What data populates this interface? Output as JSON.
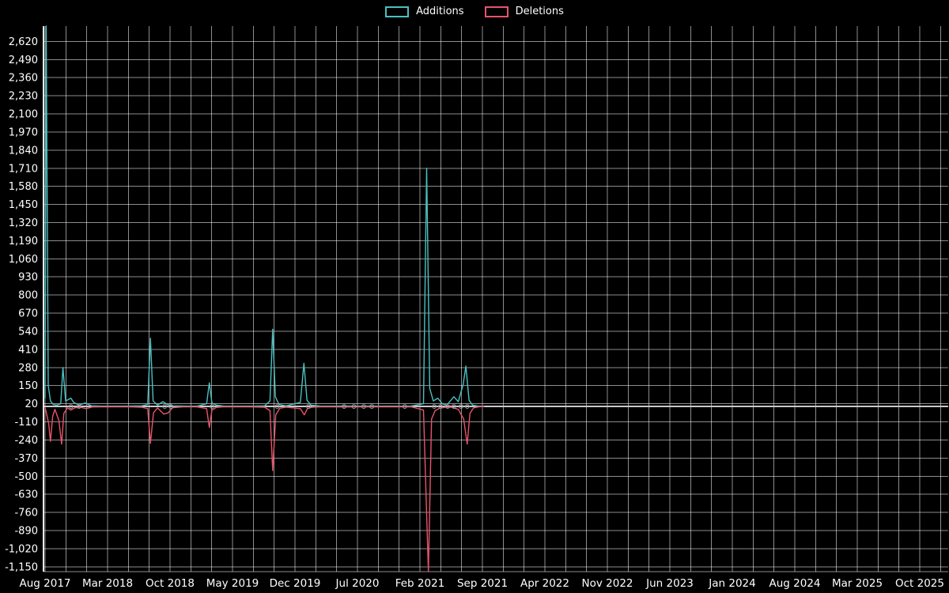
{
  "legend": {
    "additions": "Additions",
    "deletions": "Deletions"
  },
  "colors": {
    "additions": "#4bc0c0",
    "deletions": "#e8546b",
    "grid": "rgba(255,255,255,0.55)",
    "axis": "#e8e8e8",
    "zero_line": "#c9c9c9",
    "marker": "#9c9c9c",
    "text": "#ffffff",
    "background": "#000000"
  },
  "chart_data": {
    "type": "line",
    "title": "",
    "xlabel": "",
    "ylabel": "",
    "grid": true,
    "legend_position": "top-center",
    "x_unit": "months since Aug 2017",
    "ylim": [
      -1185,
      2730
    ],
    "x_ticks": [
      {
        "month": 0,
        "label": "Aug 2017"
      },
      {
        "month": 7,
        "label": "Mar 2018"
      },
      {
        "month": 14,
        "label": "Oct 2018"
      },
      {
        "month": 21,
        "label": "May 2019"
      },
      {
        "month": 28,
        "label": "Dec 2019"
      },
      {
        "month": 35,
        "label": "Jul 2020"
      },
      {
        "month": 42,
        "label": "Feb 2021"
      },
      {
        "month": 49,
        "label": "Sep 2021"
      },
      {
        "month": 56,
        "label": "Apr 2022"
      },
      {
        "month": 63,
        "label": "Nov 2022"
      },
      {
        "month": 70,
        "label": "Jun 2023"
      },
      {
        "month": 77,
        "label": "Jan 2024"
      },
      {
        "month": 84,
        "label": "Aug 2024"
      },
      {
        "month": 91,
        "label": "Mar 2025"
      },
      {
        "month": 98,
        "label": "Oct 2025"
      }
    ],
    "y_ticks": [
      {
        "value": 2620,
        "label": "2,620"
      },
      {
        "value": 2490,
        "label": "2,490"
      },
      {
        "value": 2360,
        "label": "2,360"
      },
      {
        "value": 2230,
        "label": "2,230"
      },
      {
        "value": 2100,
        "label": "2,100"
      },
      {
        "value": 1970,
        "label": "1,970"
      },
      {
        "value": 1840,
        "label": "1,840"
      },
      {
        "value": 1710,
        "label": "1,710"
      },
      {
        "value": 1580,
        "label": "1,580"
      },
      {
        "value": 1450,
        "label": "1,450"
      },
      {
        "value": 1320,
        "label": "1,320"
      },
      {
        "value": 1190,
        "label": "1,190"
      },
      {
        "value": 1060,
        "label": "1,060"
      },
      {
        "value": 930,
        "label": "930"
      },
      {
        "value": 800,
        "label": "800"
      },
      {
        "value": 670,
        "label": "670"
      },
      {
        "value": 540,
        "label": "540"
      },
      {
        "value": 410,
        "label": "410"
      },
      {
        "value": 280,
        "label": "280"
      },
      {
        "value": 150,
        "label": "150"
      },
      {
        "value": 20,
        "label": "20"
      },
      {
        "value": -110,
        "label": "-110"
      },
      {
        "value": -240,
        "label": "-240"
      },
      {
        "value": -370,
        "label": "-370"
      },
      {
        "value": -500,
        "label": "-500"
      },
      {
        "value": -630,
        "label": "-630"
      },
      {
        "value": -760,
        "label": "-760"
      },
      {
        "value": -890,
        "label": "-890"
      },
      {
        "value": -1020,
        "label": "-1,020"
      },
      {
        "value": -1150,
        "label": "-1,150"
      }
    ],
    "series": [
      {
        "name": "Additions",
        "color": "#4bc0c0",
        "points": [
          [
            0.0,
            60
          ],
          [
            0.12,
            2850
          ],
          [
            0.35,
            150
          ],
          [
            0.6,
            40
          ],
          [
            0.9,
            15
          ],
          [
            1.3,
            10
          ],
          [
            1.75,
            20
          ],
          [
            2.0,
            280
          ],
          [
            2.3,
            40
          ],
          [
            2.9,
            60
          ],
          [
            3.2,
            30
          ],
          [
            3.8,
            10
          ],
          [
            4.5,
            25
          ],
          [
            5.2,
            5
          ],
          [
            6.5,
            2
          ],
          [
            8.0,
            2
          ],
          [
            9.5,
            3
          ],
          [
            10.8,
            5
          ],
          [
            11.5,
            15
          ],
          [
            11.8,
            490
          ],
          [
            12.1,
            40
          ],
          [
            12.6,
            10
          ],
          [
            13.2,
            35
          ],
          [
            13.7,
            15
          ],
          [
            14.3,
            5
          ],
          [
            15.5,
            3
          ],
          [
            17.0,
            2
          ],
          [
            18.1,
            20
          ],
          [
            18.4,
            170
          ],
          [
            18.7,
            25
          ],
          [
            19.2,
            10
          ],
          [
            20.0,
            3
          ],
          [
            21.5,
            2
          ],
          [
            23.0,
            2
          ],
          [
            24.6,
            5
          ],
          [
            25.2,
            40
          ],
          [
            25.5,
            555
          ],
          [
            25.8,
            70
          ],
          [
            26.2,
            15
          ],
          [
            27.0,
            5
          ],
          [
            28.6,
            30
          ],
          [
            29.0,
            310
          ],
          [
            29.35,
            45
          ],
          [
            29.8,
            10
          ],
          [
            30.8,
            3
          ],
          [
            32.0,
            2
          ],
          [
            33.5,
            4
          ],
          [
            35.0,
            2
          ],
          [
            36.5,
            3
          ],
          [
            38.0,
            2
          ],
          [
            39.5,
            2
          ],
          [
            41.0,
            3
          ],
          [
            42.4,
            20
          ],
          [
            42.75,
            1710
          ],
          [
            43.1,
            130
          ],
          [
            43.5,
            40
          ],
          [
            44.0,
            60
          ],
          [
            44.5,
            20
          ],
          [
            45.0,
            10
          ],
          [
            45.8,
            70
          ],
          [
            46.3,
            35
          ],
          [
            46.85,
            160
          ],
          [
            47.15,
            290
          ],
          [
            47.5,
            45
          ],
          [
            47.9,
            10
          ],
          [
            48.6,
            2
          ],
          [
            49.2,
            0
          ]
        ]
      },
      {
        "name": "Deletions",
        "color": "#e8546b",
        "points": [
          [
            0.0,
            -5
          ],
          [
            0.12,
            -40
          ],
          [
            0.4,
            -120
          ],
          [
            0.6,
            -250
          ],
          [
            0.85,
            -70
          ],
          [
            1.1,
            -20
          ],
          [
            1.55,
            -100
          ],
          [
            1.85,
            -270
          ],
          [
            2.1,
            -50
          ],
          [
            2.5,
            -10
          ],
          [
            2.9,
            -25
          ],
          [
            3.3,
            -10
          ],
          [
            3.9,
            -5
          ],
          [
            4.6,
            -15
          ],
          [
            5.3,
            -3
          ],
          [
            6.5,
            -2
          ],
          [
            8.0,
            -2
          ],
          [
            9.5,
            -2
          ],
          [
            10.8,
            -5
          ],
          [
            11.5,
            -15
          ],
          [
            11.8,
            -265
          ],
          [
            12.15,
            -45
          ],
          [
            12.6,
            -10
          ],
          [
            13.3,
            -55
          ],
          [
            13.8,
            -45
          ],
          [
            14.3,
            -8
          ],
          [
            15.5,
            -2
          ],
          [
            17.0,
            -2
          ],
          [
            18.1,
            -15
          ],
          [
            18.4,
            -150
          ],
          [
            18.7,
            -25
          ],
          [
            19.2,
            -6
          ],
          [
            20.0,
            -2
          ],
          [
            21.5,
            -2
          ],
          [
            23.0,
            -2
          ],
          [
            24.6,
            -5
          ],
          [
            25.2,
            -30
          ],
          [
            25.5,
            -460
          ],
          [
            25.85,
            -60
          ],
          [
            26.3,
            -12
          ],
          [
            27.0,
            -4
          ],
          [
            28.6,
            -15
          ],
          [
            29.05,
            -60
          ],
          [
            29.4,
            -15
          ],
          [
            29.9,
            -5
          ],
          [
            30.8,
            -2
          ],
          [
            32.0,
            -2
          ],
          [
            33.5,
            -3
          ],
          [
            35.0,
            -2
          ],
          [
            36.5,
            -2
          ],
          [
            38.0,
            -2
          ],
          [
            39.5,
            -2
          ],
          [
            41.0,
            -2
          ],
          [
            42.4,
            -25
          ],
          [
            42.95,
            -1250
          ],
          [
            43.3,
            -90
          ],
          [
            43.7,
            -30
          ],
          [
            44.2,
            -12
          ],
          [
            44.8,
            -6
          ],
          [
            45.5,
            -4
          ],
          [
            46.3,
            -20
          ],
          [
            46.9,
            -90
          ],
          [
            47.3,
            -270
          ],
          [
            47.6,
            -50
          ],
          [
            48.0,
            -10
          ],
          [
            48.6,
            -2
          ],
          [
            49.2,
            0
          ]
        ]
      }
    ],
    "marker_months": [
      2.9,
      3.8,
      13.4,
      14.1,
      18.7,
      26.0,
      29.5,
      33.5,
      34.6,
      35.7,
      36.6,
      40.3,
      43.6,
      44.3,
      45.1,
      45.8,
      46.6,
      47.3
    ]
  }
}
